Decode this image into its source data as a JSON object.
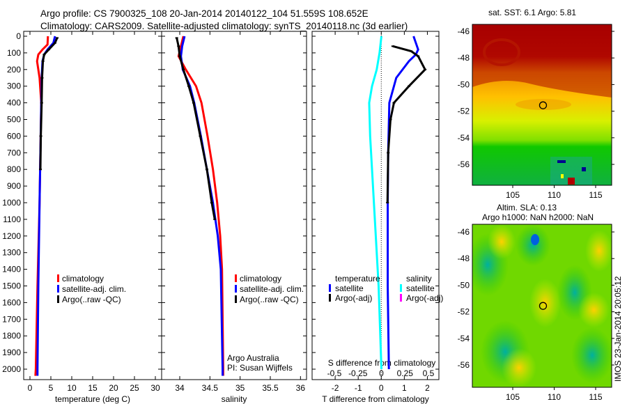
{
  "title": {
    "line1": "Argo profile: CS 7900325_108 20-Jan-2014 20140122_104 51.559S 108.652E",
    "line2": "Climatology: CARS2009. Satellite-adjusted climatology: synTS_20140118.nc (3d earlier)"
  },
  "colors": {
    "climatology": "#ff0000",
    "satellite": "#0000ff",
    "argo": "#000000",
    "salinity_satellite": "#00ffff",
    "salinity_argo": "#ff00ff"
  },
  "watermark": "IMOS 23-Jan-2014 20:05:12",
  "chart_data": [
    {
      "type": "line",
      "id": "temperature",
      "xlabel": "temperature (deg C)",
      "ylabel": "",
      "xlim": [
        -1.5,
        31.5
      ],
      "ylim": [
        2050,
        0
      ],
      "xticks": [
        0,
        5,
        10,
        15,
        20,
        25,
        30
      ],
      "yticks": [
        0,
        100,
        200,
        300,
        400,
        500,
        600,
        700,
        800,
        900,
        1000,
        1100,
        1200,
        1300,
        1400,
        1500,
        1600,
        1700,
        1800,
        1900,
        2000
      ],
      "legend": {
        "placement": "bottom-center",
        "entries": [
          "climatology",
          "satellite-adj. clim.",
          "Argo(..raw -QC)"
        ]
      },
      "series": [
        {
          "name": "climatology",
          "color": "#ff0000",
          "depth": [
            0,
            50,
            80,
            110,
            150,
            250,
            400,
            700,
            1000,
            1500,
            2000,
            2040
          ],
          "values": [
            4.3,
            4.2,
            3.0,
            2.0,
            1.7,
            2.3,
            2.7,
            2.5,
            2.3,
            1.8,
            1.4,
            1.3
          ]
        },
        {
          "name": "satellite-adj. clim.",
          "color": "#0000ff",
          "depth": [
            0,
            40,
            80,
            110,
            150,
            250,
            400,
            700,
            1000,
            1500,
            2000,
            2040
          ],
          "values": [
            6.0,
            5.6,
            4.2,
            3.4,
            3.0,
            2.8,
            2.7,
            2.5,
            2.3,
            2.0,
            1.8,
            1.8
          ]
        },
        {
          "name": "Argo(..raw -QC)",
          "color": "#000000",
          "depth": [
            10,
            40,
            80,
            110,
            150,
            250,
            400,
            600,
            800
          ],
          "values": [
            6.5,
            6.0,
            4.5,
            3.4,
            3.1,
            2.9,
            2.8,
            2.6,
            2.5
          ]
        }
      ]
    },
    {
      "type": "line",
      "id": "salinity",
      "xlabel": "salinity",
      "xlim": [
        33.7,
        36.1
      ],
      "ylim": [
        2050,
        0
      ],
      "xticks": [
        34,
        34.5,
        35,
        35.5,
        36
      ],
      "legend": {
        "placement": "bottom-center",
        "entries": [
          "climatology",
          "satellite-adj. clim.",
          "Argo(..raw -QC)"
        ]
      },
      "annotation": [
        "Argo Australia",
        "PI: Susan Wijffels"
      ],
      "series": [
        {
          "name": "climatology",
          "color": "#ff0000",
          "depth": [
            0,
            60,
            120,
            200,
            300,
            400,
            600,
            800,
            1000,
            1200,
            1400,
            2000,
            2040
          ],
          "values": [
            34.06,
            34.02,
            33.98,
            34.1,
            34.27,
            34.36,
            34.46,
            34.55,
            34.62,
            34.67,
            34.7,
            34.72,
            34.72
          ]
        },
        {
          "name": "satellite-adj. clim.",
          "color": "#0000ff",
          "depth": [
            0,
            60,
            120,
            200,
            300,
            400,
            600,
            800,
            1000,
            1200,
            1400,
            2000,
            2040
          ],
          "values": [
            34.08,
            34.04,
            34.02,
            34.05,
            34.17,
            34.24,
            34.35,
            34.45,
            34.55,
            34.63,
            34.68,
            34.71,
            34.71
          ]
        },
        {
          "name": "Argo(..raw -QC)",
          "color": "#000000",
          "depth": [
            10,
            60,
            120,
            200,
            300,
            400,
            600,
            800,
            1000,
            1100
          ],
          "values": [
            33.95,
            33.98,
            34.0,
            34.06,
            34.15,
            34.23,
            34.34,
            34.45,
            34.53,
            34.58
          ]
        }
      ]
    },
    {
      "type": "line",
      "id": "difference",
      "xlabel": "T difference from climatology",
      "xlabel_top": "S difference from climatology",
      "xlim": [
        -3,
        2.5
      ],
      "xticks": [
        -2,
        -1,
        0,
        1,
        2
      ],
      "xlim_top": [
        -0.55,
        0.5
      ],
      "xticks_top": [
        "-0.5",
        "-0.25",
        "0",
        "0.25",
        "0.5"
      ],
      "xticks_top_values": [
        -0.5,
        -0.25,
        0,
        0.25,
        0.5
      ],
      "ylim": [
        2050,
        0
      ],
      "legend": {
        "placement": "bottom-center",
        "temperature_title": "temperature",
        "salinity_title": "salinity",
        "entries_t": [
          "satellite",
          "Argo(-adj)"
        ],
        "entries_s": [
          "satellite",
          "Argo(-adj)"
        ]
      },
      "series": [
        {
          "name": "temperature satellite",
          "color": "#0000ff",
          "depth": [
            0,
            40,
            80,
            110,
            150,
            250,
            400,
            700,
            1000,
            1500,
            2000
          ],
          "values": [
            1.4,
            1.5,
            1.6,
            1.5,
            1.2,
            0.65,
            0.35,
            0.3,
            0.28,
            0.28,
            0.33
          ]
        },
        {
          "name": "temperature Argo(-adj)",
          "color": "#000000",
          "depth": [
            60,
            90,
            120,
            200,
            300,
            400,
            500,
            700,
            1000
          ],
          "values": [
            0.5,
            1.3,
            1.6,
            1.9,
            1.2,
            0.55,
            0.4,
            0.3,
            0.27
          ]
        },
        {
          "name": "salinity satellite",
          "color": "#00ffff",
          "axis": "top",
          "depth": [
            0,
            100,
            200,
            300,
            400,
            600,
            1000,
            1500,
            2000
          ],
          "values": [
            0.0,
            -0.02,
            -0.05,
            -0.1,
            -0.13,
            -0.12,
            -0.08,
            -0.03,
            0.0
          ]
        }
      ]
    },
    {
      "type": "heatmap",
      "id": "sst-map",
      "title": "sat. SST: 6.1 Argo: 5.81",
      "xlim": [
        100.2,
        116.8
      ],
      "ylim": [
        -57.5,
        -45.5
      ],
      "xticks": [
        105,
        110,
        115
      ],
      "yticks": [
        -46,
        -48,
        -50,
        -52,
        -54,
        -56
      ],
      "marker": {
        "lon": 108.652,
        "lat": -51.559
      }
    },
    {
      "type": "heatmap",
      "id": "sla-map",
      "title": "Altim. SLA: 0.13",
      "subtitle": "Argo h1000: NaN h2000: NaN",
      "xlim": [
        100.2,
        116.8
      ],
      "ylim": [
        -57.5,
        -45.5
      ],
      "xticks": [
        105,
        110,
        115
      ],
      "yticks": [
        -46,
        -48,
        -50,
        -52,
        -54,
        -56
      ],
      "marker": {
        "lon": 108.652,
        "lat": -51.559
      }
    }
  ]
}
